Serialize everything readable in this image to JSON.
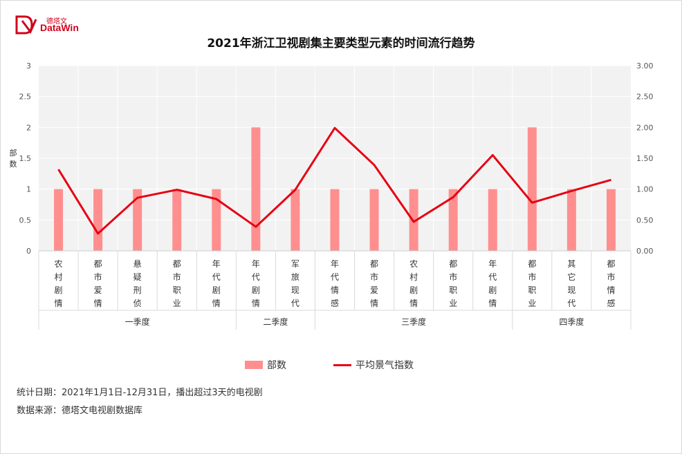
{
  "logo": {
    "cn": "德塔文",
    "en": "DataWin"
  },
  "title": "2021年浙江卫视剧集主要类型元素的时间流行趋势",
  "chart_data": {
    "type": "bar+line",
    "categories": [
      [
        "农",
        "村",
        "剧",
        "情"
      ],
      [
        "都",
        "市",
        "爱",
        "情"
      ],
      [
        "悬",
        "疑",
        "刑",
        "侦"
      ],
      [
        "都",
        "市",
        "职",
        "业"
      ],
      [
        "年",
        "代",
        "剧",
        "情"
      ],
      [
        "年",
        "代",
        "剧",
        "情"
      ],
      [
        "军",
        "旅",
        "现",
        "代"
      ],
      [
        "年",
        "代",
        "情",
        "感"
      ],
      [
        "都",
        "市",
        "爱",
        "情"
      ],
      [
        "农",
        "村",
        "剧",
        "情"
      ],
      [
        "都",
        "市",
        "职",
        "业"
      ],
      [
        "年",
        "代",
        "剧",
        "情"
      ],
      [
        "都",
        "市",
        "职",
        "业"
      ],
      [
        "其",
        "它",
        "现",
        "代"
      ],
      [
        "都",
        "市",
        "情",
        "感"
      ]
    ],
    "groups": [
      {
        "name": "一季度",
        "count": 5
      },
      {
        "name": "二季度",
        "count": 2
      },
      {
        "name": "三季度",
        "count": 5
      },
      {
        "name": "四季度",
        "count": 3
      }
    ],
    "series": [
      {
        "name": "部数",
        "type": "bar",
        "axis": "left",
        "color": "#ff8f8f",
        "values": [
          1,
          1,
          1,
          1,
          1,
          2,
          1,
          1,
          1,
          1,
          1,
          1,
          2,
          1,
          1
        ]
      },
      {
        "name": "平均景气指数",
        "type": "line",
        "axis": "right",
        "color": "#e60012",
        "values": [
          1.32,
          0.28,
          0.86,
          0.99,
          0.84,
          0.39,
          0.99,
          1.99,
          1.39,
          0.47,
          0.87,
          1.55,
          0.78,
          0.97,
          1.15
        ]
      }
    ],
    "ylabel": [
      "部",
      "数"
    ],
    "ylim": [
      0,
      3
    ],
    "y_ticks_left": [
      "0",
      "0.5",
      "1",
      "1.5",
      "2",
      "2.5",
      "3"
    ],
    "y_ticks_right": [
      "0.00",
      "0.50",
      "1.00",
      "1.50",
      "2.00",
      "2.50",
      "3.00"
    ],
    "grid": true,
    "legend_position": "bottom"
  },
  "legend": {
    "bar_label": "部数",
    "line_label": "平均景气指数"
  },
  "notes": {
    "period": "统计日期：2021年1月1日-12月31日，播出超过3天的电视剧",
    "source": "数据来源：德塔文电视剧数据库"
  }
}
